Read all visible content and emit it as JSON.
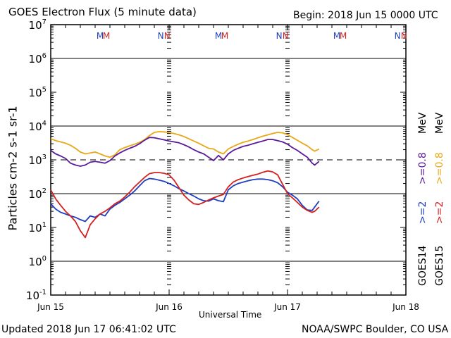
{
  "header": {
    "title": "GOES Electron Flux (5 minute data)",
    "begin": "Begin: 2018 Jun 15 0000 UTC"
  },
  "footer": {
    "updated": "Updated 2018 Jun 17 06:41:02 UTC",
    "credit": "NOAA/SWPC Boulder, CO USA"
  },
  "chart_data": {
    "type": "line",
    "title": "GOES Electron Flux (5 minute data)",
    "xlabel": "Universal Time",
    "ylabel": "Particles cm-2 s-1 sr-1",
    "yscale": "log",
    "ylim": [
      0.1,
      10000000
    ],
    "xlim_hours": [
      0,
      72
    ],
    "x_unit": "hours since 2018 Jun 15 0000 UTC",
    "x_ticks": [
      {
        "hour": 0,
        "label": "Jun 15"
      },
      {
        "hour": 24,
        "label": "Jun 16"
      },
      {
        "hour": 48,
        "label": "Jun 17"
      },
      {
        "hour": 72,
        "label": "Jun 18"
      }
    ],
    "y_ticks": [
      {
        "value": 10000000,
        "base": "10",
        "exp": "7"
      },
      {
        "value": 1000000,
        "base": "10",
        "exp": "6"
      },
      {
        "value": 100000,
        "base": "10",
        "exp": "5"
      },
      {
        "value": 10000,
        "base": "10",
        "exp": "4"
      },
      {
        "value": 1000,
        "base": "10",
        "exp": "3"
      },
      {
        "value": 100,
        "base": "10",
        "exp": "2"
      },
      {
        "value": 10,
        "base": "10",
        "exp": "1"
      },
      {
        "value": 1,
        "base": "10",
        "exp": "0"
      },
      {
        "value": 0.1,
        "base": "10",
        "exp": "-1"
      }
    ],
    "grid_lines": [
      1000000,
      10000,
      100,
      1
    ],
    "threshold_line": {
      "value": 1000,
      "style": "dashed"
    },
    "markers": [
      {
        "hour": 10,
        "label": "M",
        "color": "#1f3fbf"
      },
      {
        "hour": 11.3,
        "label": "M",
        "color": "#d42020"
      },
      {
        "hour": 22.3,
        "label": "N",
        "color": "#1f3fbf"
      },
      {
        "hour": 23.6,
        "label": "N",
        "color": "#d42020"
      },
      {
        "hour": 34,
        "label": "M",
        "color": "#1f3fbf"
      },
      {
        "hour": 35.3,
        "label": "M",
        "color": "#d42020"
      },
      {
        "hour": 46.3,
        "label": "N",
        "color": "#1f3fbf"
      },
      {
        "hour": 47.6,
        "label": "N",
        "color": "#d42020"
      },
      {
        "hour": 58,
        "label": "M",
        "color": "#1f3fbf"
      },
      {
        "hour": 59.3,
        "label": "M",
        "color": "#d42020"
      },
      {
        "hour": 70.3,
        "label": "N",
        "color": "#1f3fbf"
      },
      {
        "hour": 71.6,
        "label": "N",
        "color": "#d42020"
      }
    ],
    "legend": {
      "placement": "right",
      "items": [
        {
          "label": ">=0.8 MeV",
          "group": "GOES14",
          "color": "#5a1a9a"
        },
        {
          "label": ">=0.8 MeV",
          "group": "GOES15",
          "color": "#e8a818"
        },
        {
          "label": ">=2",
          "group": "GOES14",
          "color": "#1f3fbf"
        },
        {
          "label": ">=2",
          "group": "GOES15",
          "color": "#d42020"
        },
        {
          "label": "GOES14",
          "color": "#000000"
        },
        {
          "label": "GOES15",
          "color": "#000000"
        }
      ]
    },
    "series": [
      {
        "name": "GOES15 >=0.8 MeV",
        "color": "#e8a818",
        "x": [
          0,
          1,
          2,
          3,
          4,
          5,
          6,
          7,
          8,
          9,
          10,
          11,
          12,
          13,
          14,
          15,
          16,
          17,
          18,
          19,
          20,
          21,
          22,
          23,
          24,
          25,
          26,
          27,
          28,
          29,
          30,
          31,
          32,
          33,
          34,
          35,
          36,
          37,
          38,
          39,
          40,
          41,
          42,
          43,
          44,
          45,
          46,
          47,
          48,
          49,
          50,
          51,
          52,
          53,
          53.5,
          54.4
        ],
        "y": [
          4200,
          3700,
          3400,
          3100,
          2700,
          2200,
          1700,
          1500,
          1600,
          1700,
          1500,
          1300,
          1200,
          1400,
          2000,
          2300,
          2600,
          2900,
          3300,
          3900,
          5200,
          6500,
          6800,
          6700,
          6400,
          6000,
          5500,
          4900,
          4200,
          3600,
          3100,
          2600,
          2200,
          2100,
          1700,
          1500,
          2100,
          2500,
          2900,
          3300,
          3600,
          4000,
          4500,
          5000,
          5500,
          6000,
          6500,
          6300,
          5600,
          4600,
          3800,
          3100,
          2600,
          2000,
          1800,
          2100
        ]
      },
      {
        "name": "GOES14 >=0.8 MeV",
        "color": "#5a1a9a",
        "x": [
          0,
          1,
          2,
          3,
          4,
          5,
          6,
          7,
          8,
          9,
          10,
          11,
          12,
          13,
          14,
          15,
          16,
          17,
          18,
          19,
          20,
          21,
          22,
          23,
          24,
          25,
          26,
          27,
          28,
          29,
          30,
          31,
          32,
          33,
          34,
          35,
          36,
          37,
          38,
          39,
          40,
          41,
          42,
          43,
          44,
          45,
          46,
          47,
          48,
          49,
          50,
          51,
          52,
          53,
          53.5,
          54.4
        ],
        "y": [
          1900,
          1500,
          1300,
          1100,
          800,
          700,
          650,
          700,
          850,
          900,
          850,
          800,
          950,
          1300,
          1600,
          1900,
          2200,
          2500,
          3000,
          3800,
          4600,
          4500,
          4200,
          3900,
          3600,
          3400,
          3200,
          2800,
          2400,
          2000,
          1700,
          1500,
          1200,
          950,
          1350,
          1000,
          1500,
          1900,
          2200,
          2500,
          2700,
          3000,
          3300,
          3600,
          4000,
          4000,
          3700,
          3400,
          2900,
          2300,
          1900,
          1500,
          1200,
          800,
          700,
          900
        ]
      },
      {
        "name": "GOES14 >=2 MeV",
        "color": "#1f3fbf",
        "x": [
          0,
          1,
          2,
          3,
          4,
          5,
          6,
          7,
          8,
          9,
          10,
          11,
          12,
          13,
          14,
          15,
          16,
          17,
          18,
          19,
          20,
          21,
          22,
          23,
          24,
          25,
          26,
          27,
          28,
          29,
          30,
          31,
          32,
          33,
          34,
          35,
          36,
          37,
          38,
          39,
          40,
          41,
          42,
          43,
          44,
          45,
          46,
          47,
          48,
          49,
          50,
          51,
          52,
          53,
          53.5,
          54.4
        ],
        "y": [
          50,
          35,
          28,
          25,
          22,
          20,
          17,
          15,
          22,
          20,
          25,
          22,
          35,
          45,
          55,
          70,
          90,
          120,
          170,
          240,
          280,
          270,
          250,
          230,
          200,
          170,
          140,
          120,
          100,
          85,
          70,
          62,
          60,
          70,
          62,
          58,
          130,
          170,
          200,
          220,
          240,
          260,
          270,
          270,
          260,
          240,
          210,
          160,
          110,
          90,
          70,
          45,
          33,
          32,
          40,
          60
        ]
      },
      {
        "name": "GOES15 >=2 MeV",
        "color": "#d42020",
        "x": [
          0,
          1,
          2,
          3,
          4,
          5,
          6,
          7,
          8,
          9,
          10,
          11,
          12,
          13,
          14,
          15,
          16,
          17,
          18,
          19,
          20,
          21,
          22,
          23,
          24,
          25,
          26,
          27,
          28,
          29,
          30,
          31,
          32,
          33,
          34,
          35,
          36,
          37,
          38,
          39,
          40,
          41,
          42,
          43,
          44,
          45,
          46,
          47,
          48,
          49,
          50,
          51,
          52,
          53,
          53.5,
          54.4
        ],
        "y": [
          130,
          70,
          45,
          30,
          22,
          15,
          8,
          5,
          12,
          18,
          25,
          30,
          38,
          50,
          60,
          80,
          110,
          160,
          220,
          300,
          390,
          420,
          420,
          400,
          360,
          250,
          150,
          90,
          65,
          50,
          48,
          55,
          65,
          75,
          85,
          95,
          160,
          220,
          260,
          290,
          320,
          350,
          380,
          430,
          470,
          440,
          360,
          190,
          100,
          75,
          55,
          40,
          32,
          28,
          30,
          40
        ]
      }
    ]
  }
}
